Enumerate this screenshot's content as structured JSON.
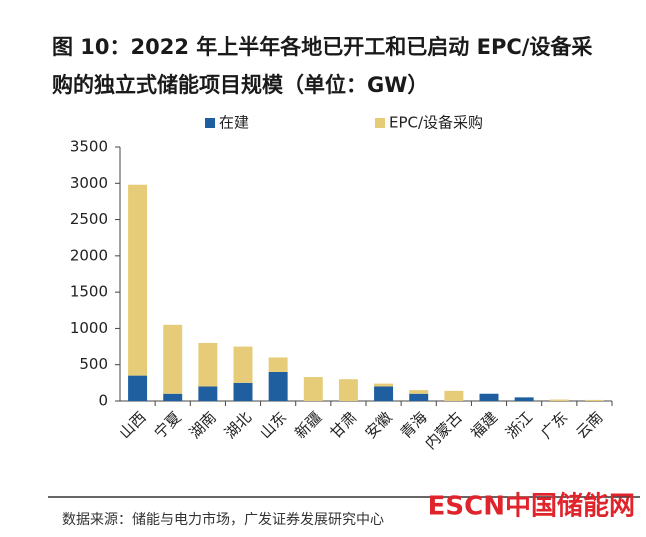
{
  "chart_data": {
    "type": "stacked_bar",
    "title": "图 10：2022 年上半年各地已开工和已启动 EPC/设备采购的独立式储能项目规模（单位：GW）",
    "categories": [
      "山西",
      "宁夏",
      "湖南",
      "湖北",
      "山东",
      "新疆",
      "甘肃",
      "安徽",
      "青海",
      "内蒙古",
      "福建",
      "浙江",
      "广东",
      "云南"
    ],
    "series": [
      {
        "name": "在建",
        "color": "#1f5fa0",
        "values": [
          350,
          100,
          200,
          250,
          400,
          0,
          0,
          200,
          100,
          0,
          100,
          50,
          0,
          0
        ]
      },
      {
        "name": "EPC/设备采购",
        "color": "#e6cc78",
        "values": [
          2630,
          950,
          600,
          500,
          200,
          330,
          300,
          40,
          50,
          140,
          0,
          0,
          20,
          15
        ]
      }
    ],
    "ylim": [
      0,
      3500
    ],
    "yticks": [
      0,
      500,
      1000,
      1500,
      2000,
      2500,
      3000,
      3500
    ],
    "grid": false,
    "source": "数据来源：储能与电力市场，广发证券发展研究中心",
    "watermark": "ESCN中国储能网"
  }
}
